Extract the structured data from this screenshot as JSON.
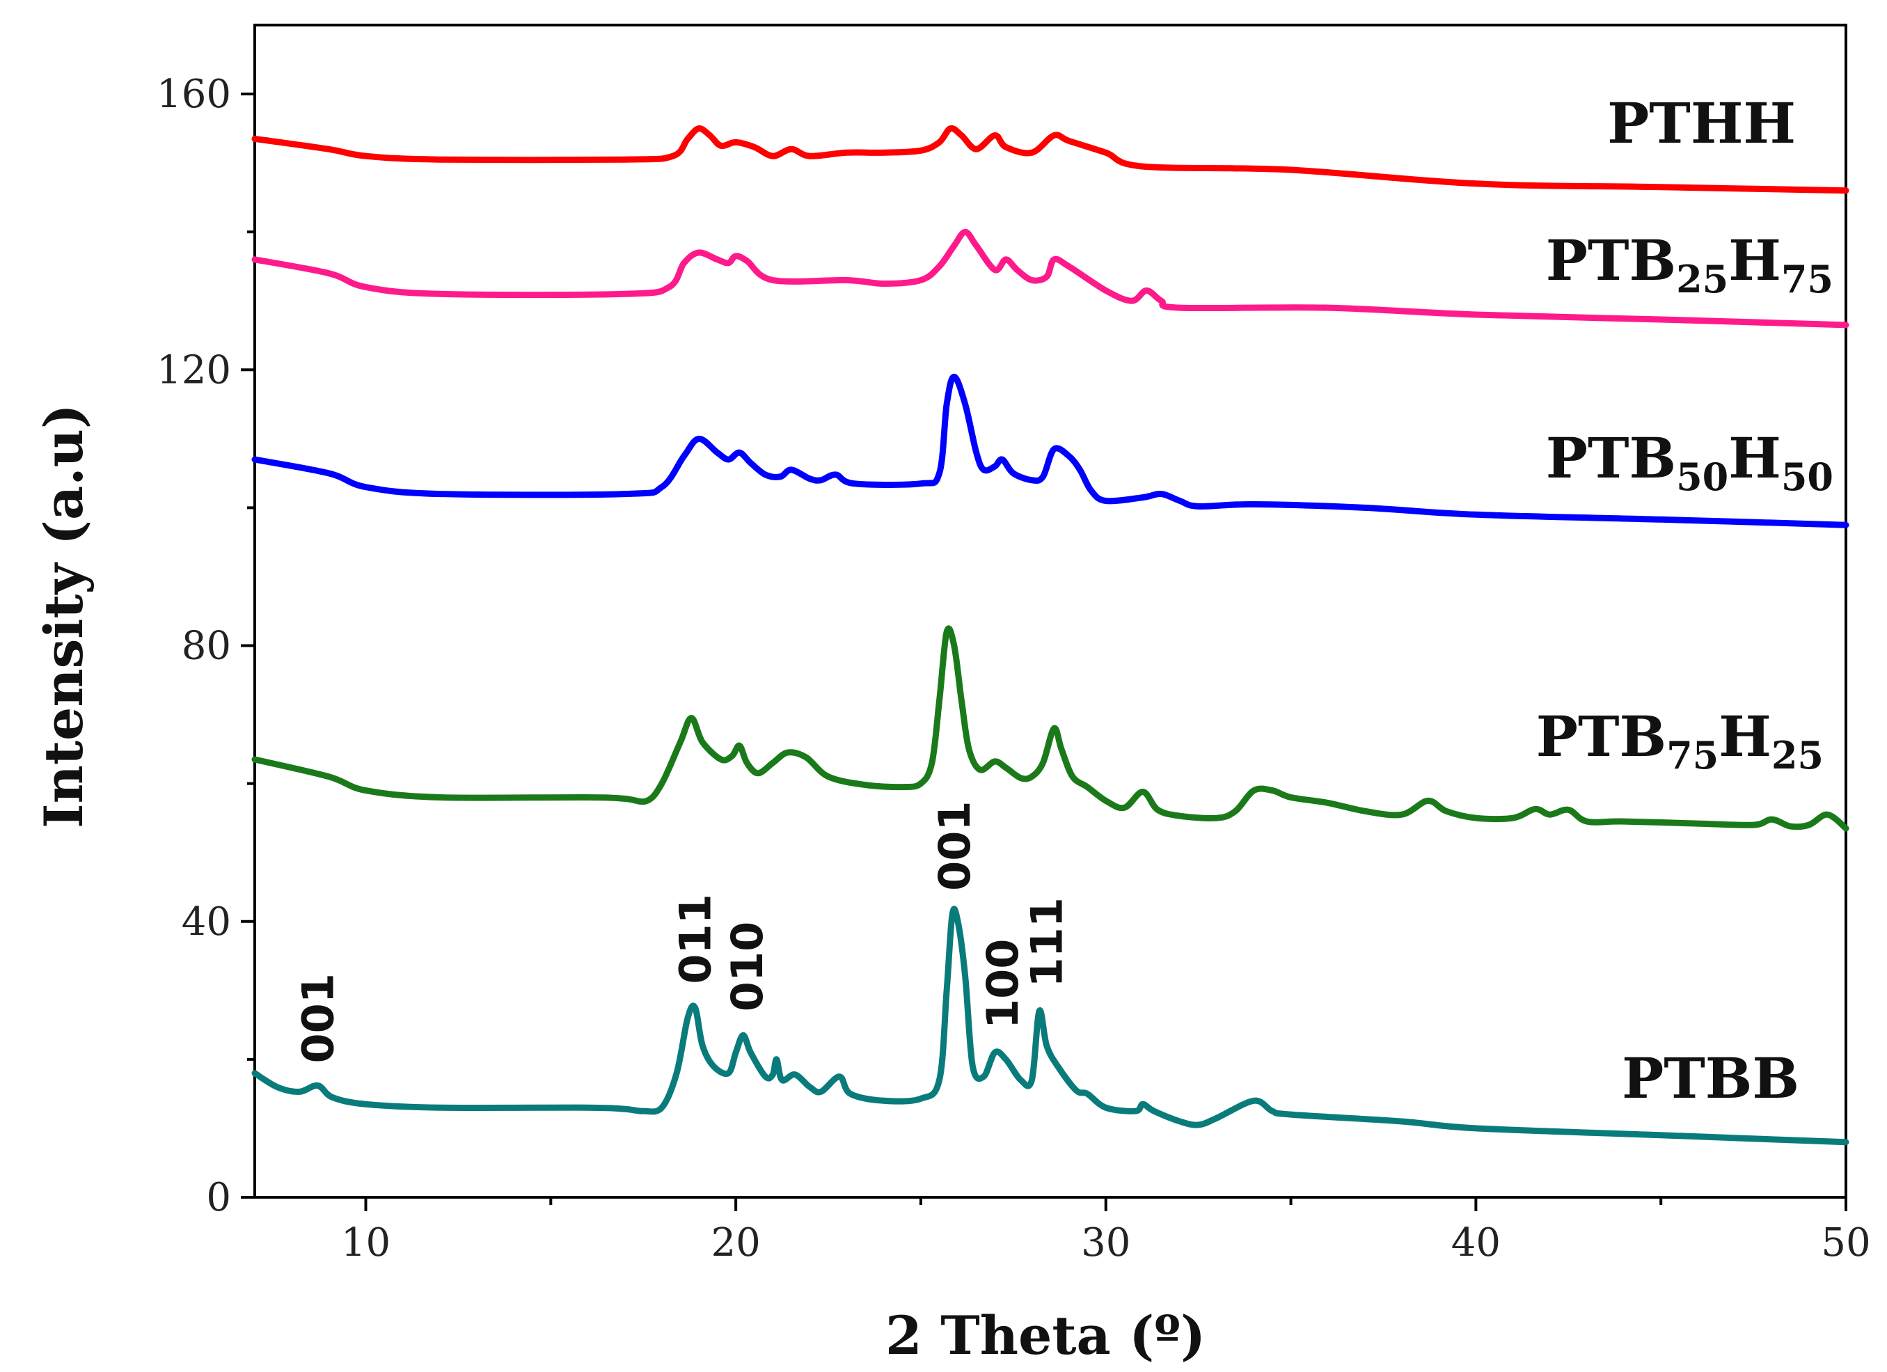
{
  "chart_data": {
    "type": "line",
    "title": "",
    "xlabel": "2 Theta (º)",
    "ylabel": "Intensity (a.u)",
    "xlim": [
      7,
      50
    ],
    "ylim": [
      0,
      170
    ],
    "x_ticks": [
      10,
      20,
      30,
      40,
      50
    ],
    "y_ticks": [
      0,
      40,
      80,
      120,
      160
    ],
    "series": [
      {
        "name": "PTHH",
        "label_main": "PTHH",
        "label_parts": [
          [
            "PTHH",
            false
          ]
        ],
        "color": "#ff0000",
        "points": [
          [
            7,
            153.5
          ],
          [
            9,
            152
          ],
          [
            10,
            151
          ],
          [
            12,
            150.5
          ],
          [
            17,
            150.5
          ],
          [
            18.3,
            151
          ],
          [
            18.7,
            153.5
          ],
          [
            19,
            155
          ],
          [
            19.3,
            154
          ],
          [
            19.6,
            152.5
          ],
          [
            20,
            153
          ],
          [
            20.5,
            152.3
          ],
          [
            21,
            151
          ],
          [
            21.5,
            152
          ],
          [
            22,
            151
          ],
          [
            23,
            151.5
          ],
          [
            24,
            151.5
          ],
          [
            25,
            151.8
          ],
          [
            25.5,
            153
          ],
          [
            25.8,
            155
          ],
          [
            26.1,
            154
          ],
          [
            26.5,
            152
          ],
          [
            27,
            154
          ],
          [
            27.3,
            152.3
          ],
          [
            28,
            151.5
          ],
          [
            28.6,
            154
          ],
          [
            29,
            153.2
          ],
          [
            30,
            151.5
          ],
          [
            31,
            149.5
          ],
          [
            35,
            149
          ],
          [
            40,
            147
          ],
          [
            45,
            146.5
          ],
          [
            50,
            146
          ]
        ]
      },
      {
        "name": "PTB25H75",
        "label_main": "PTB25H75",
        "label_parts": [
          [
            "PTB",
            false
          ],
          [
            "25",
            true
          ],
          [
            "H",
            false
          ],
          [
            "75",
            true
          ]
        ],
        "color": "#ff1a8c",
        "points": [
          [
            7,
            136
          ],
          [
            9,
            134
          ],
          [
            10,
            132
          ],
          [
            12,
            131
          ],
          [
            17,
            131
          ],
          [
            18.2,
            132
          ],
          [
            18.6,
            135.5
          ],
          [
            19,
            137
          ],
          [
            19.5,
            136
          ],
          [
            19.8,
            135.5
          ],
          [
            20,
            136.5
          ],
          [
            20.3,
            135.8
          ],
          [
            21,
            133
          ],
          [
            23,
            133
          ],
          [
            24,
            132.5
          ],
          [
            25,
            133
          ],
          [
            25.5,
            135
          ],
          [
            25.9,
            138
          ],
          [
            26.2,
            140
          ],
          [
            26.5,
            138
          ],
          [
            27,
            134.5
          ],
          [
            27.3,
            136
          ],
          [
            27.6,
            134.5
          ],
          [
            28,
            133
          ],
          [
            28.4,
            133.5
          ],
          [
            28.6,
            136
          ],
          [
            29,
            135
          ],
          [
            30,
            131.5
          ],
          [
            30.7,
            130
          ],
          [
            31.1,
            131.5
          ],
          [
            31.5,
            130
          ],
          [
            32,
            129
          ],
          [
            36,
            129
          ],
          [
            40,
            128
          ],
          [
            45,
            127.3
          ],
          [
            50,
            126.5
          ]
        ]
      },
      {
        "name": "PTB50H50",
        "label_main": "PTB50H50",
        "label_parts": [
          [
            "PTB",
            false
          ],
          [
            "50",
            true
          ],
          [
            "H",
            false
          ],
          [
            "50",
            true
          ]
        ],
        "color": "#0000ff",
        "points": [
          [
            7,
            107
          ],
          [
            9,
            105
          ],
          [
            10,
            103
          ],
          [
            12,
            102
          ],
          [
            17,
            102
          ],
          [
            18,
            103
          ],
          [
            18.6,
            107.5
          ],
          [
            19,
            110
          ],
          [
            19.5,
            108
          ],
          [
            19.8,
            107
          ],
          [
            20.1,
            108
          ],
          [
            20.4,
            106.5
          ],
          [
            20.8,
            104.8
          ],
          [
            21.2,
            104.5
          ],
          [
            21.5,
            105.5
          ],
          [
            22,
            104.2
          ],
          [
            22.3,
            104
          ],
          [
            22.7,
            104.8
          ],
          [
            23.2,
            103.5
          ],
          [
            25,
            103.5
          ],
          [
            25.5,
            105
          ],
          [
            25.7,
            115
          ],
          [
            25.9,
            119
          ],
          [
            26.2,
            115
          ],
          [
            26.5,
            108
          ],
          [
            26.7,
            105.5
          ],
          [
            27,
            106
          ],
          [
            27.2,
            107
          ],
          [
            27.5,
            105
          ],
          [
            28,
            104
          ],
          [
            28.3,
            104.5
          ],
          [
            28.6,
            108.5
          ],
          [
            29,
            107.5
          ],
          [
            29.3,
            105.5
          ],
          [
            29.6,
            102.5
          ],
          [
            30,
            101
          ],
          [
            31,
            101.5
          ],
          [
            31.5,
            102
          ],
          [
            32,
            101
          ],
          [
            32.5,
            100.2
          ],
          [
            34,
            100.5
          ],
          [
            37,
            100
          ],
          [
            40,
            99
          ],
          [
            45,
            98.3
          ],
          [
            50,
            97.5
          ]
        ]
      },
      {
        "name": "PTB75H25",
        "label_main": "PTB75H25",
        "label_parts": [
          [
            "PTB",
            false
          ],
          [
            "75",
            true
          ],
          [
            "H",
            false
          ],
          [
            "25",
            true
          ]
        ],
        "color": "#1a7a1a",
        "points": [
          [
            7,
            63.5
          ],
          [
            9,
            61
          ],
          [
            10,
            59
          ],
          [
            12,
            58
          ],
          [
            16,
            58
          ],
          [
            17,
            57.8
          ],
          [
            17.6,
            57.5
          ],
          [
            18,
            60
          ],
          [
            18.5,
            66
          ],
          [
            18.8,
            69.5
          ],
          [
            19.1,
            66
          ],
          [
            19.6,
            63.5
          ],
          [
            19.9,
            64
          ],
          [
            20.1,
            65.5
          ],
          [
            20.3,
            63
          ],
          [
            20.6,
            61.5
          ],
          [
            21,
            63
          ],
          [
            21.4,
            64.5
          ],
          [
            21.9,
            63.8
          ],
          [
            22.5,
            61
          ],
          [
            23.5,
            59.8
          ],
          [
            24.5,
            59.5
          ],
          [
            25,
            60
          ],
          [
            25.3,
            63
          ],
          [
            25.5,
            72
          ],
          [
            25.7,
            82
          ],
          [
            25.9,
            80
          ],
          [
            26.1,
            72
          ],
          [
            26.3,
            65
          ],
          [
            26.6,
            62
          ],
          [
            27,
            63.2
          ],
          [
            27.3,
            62.3
          ],
          [
            27.7,
            60.8
          ],
          [
            28,
            61
          ],
          [
            28.3,
            63
          ],
          [
            28.6,
            68
          ],
          [
            28.8,
            65
          ],
          [
            29.1,
            61
          ],
          [
            29.5,
            59.5
          ],
          [
            30,
            57.5
          ],
          [
            30.5,
            56.5
          ],
          [
            31,
            58.8
          ],
          [
            31.4,
            56.2
          ],
          [
            32,
            55.3
          ],
          [
            33,
            55
          ],
          [
            33.5,
            56
          ],
          [
            34,
            59
          ],
          [
            34.5,
            59
          ],
          [
            35,
            58
          ],
          [
            36,
            57.2
          ],
          [
            37,
            56
          ],
          [
            38,
            55.5
          ],
          [
            38.7,
            57.5
          ],
          [
            39.2,
            56
          ],
          [
            40,
            55
          ],
          [
            41,
            55
          ],
          [
            41.6,
            56.3
          ],
          [
            42,
            55.5
          ],
          [
            42.5,
            56.2
          ],
          [
            43,
            54.5
          ],
          [
            44,
            54.5
          ],
          [
            46,
            54.2
          ],
          [
            47.5,
            54
          ],
          [
            48,
            54.8
          ],
          [
            48.5,
            53.8
          ],
          [
            49,
            54
          ],
          [
            49.5,
            55.5
          ],
          [
            50,
            53.5
          ]
        ]
      },
      {
        "name": "PTBB",
        "label_main": "PTBB",
        "label_parts": [
          [
            "PTBB",
            false
          ]
        ],
        "color": "#0a7b7b",
        "points": [
          [
            7,
            18
          ],
          [
            7.6,
            16
          ],
          [
            8.2,
            15.3
          ],
          [
            8.7,
            16.2
          ],
          [
            9.1,
            14.5
          ],
          [
            10,
            13.5
          ],
          [
            12,
            13
          ],
          [
            16,
            13
          ],
          [
            17,
            12.8
          ],
          [
            17.5,
            12.5
          ],
          [
            18,
            13
          ],
          [
            18.4,
            18
          ],
          [
            18.7,
            26
          ],
          [
            18.9,
            27.5
          ],
          [
            19.1,
            22
          ],
          [
            19.4,
            19
          ],
          [
            19.8,
            18
          ],
          [
            20,
            21
          ],
          [
            20.2,
            23.5
          ],
          [
            20.4,
            21
          ],
          [
            20.8,
            17.5
          ],
          [
            21,
            17.8
          ],
          [
            21.1,
            20
          ],
          [
            21.25,
            17
          ],
          [
            21.6,
            17.8
          ],
          [
            22,
            16
          ],
          [
            22.3,
            15.3
          ],
          [
            22.8,
            17.5
          ],
          [
            23.1,
            15
          ],
          [
            24,
            14
          ],
          [
            25,
            14.3
          ],
          [
            25.5,
            17
          ],
          [
            25.7,
            30
          ],
          [
            25.85,
            41
          ],
          [
            26,
            40
          ],
          [
            26.2,
            32
          ],
          [
            26.4,
            19
          ],
          [
            26.7,
            17.5
          ],
          [
            27,
            21
          ],
          [
            27.3,
            20
          ],
          [
            27.7,
            17
          ],
          [
            28,
            17
          ],
          [
            28.2,
            27
          ],
          [
            28.4,
            22
          ],
          [
            28.7,
            19
          ],
          [
            29.2,
            15.5
          ],
          [
            29.5,
            15
          ],
          [
            30,
            13
          ],
          [
            30.8,
            12.5
          ],
          [
            31,
            13.5
          ],
          [
            31.3,
            12.5
          ],
          [
            32,
            11
          ],
          [
            32.5,
            10.5
          ],
          [
            33,
            11.5
          ],
          [
            34,
            14
          ],
          [
            34.5,
            12.5
          ],
          [
            35,
            12
          ],
          [
            38,
            11
          ],
          [
            40,
            10
          ],
          [
            45,
            9
          ],
          [
            50,
            8
          ]
        ]
      }
    ],
    "series_label_positions": [
      "PTHH",
      "PTB25H75",
      "PTB50H50",
      "PTB75H25",
      "PTBB"
    ],
    "annotations": [
      {
        "text": "001",
        "x": 8.7,
        "y": 16
      },
      {
        "text": "011",
        "x": 18.9,
        "y": 27.5
      },
      {
        "text": "010",
        "x": 20.3,
        "y": 23.5
      },
      {
        "text": "001",
        "x": 25.9,
        "y": 41
      },
      {
        "text": "100",
        "x": 27.2,
        "y": 21
      },
      {
        "text": "111",
        "x": 28.4,
        "y": 27
      }
    ],
    "legend": "none",
    "grid": false
  }
}
